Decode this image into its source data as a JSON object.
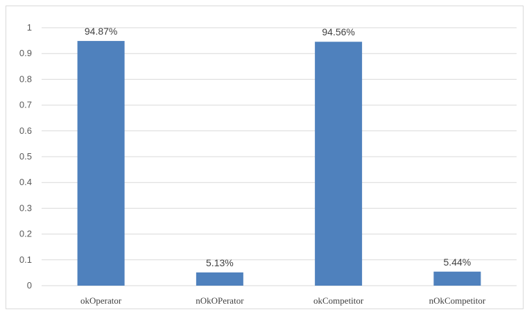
{
  "chart_data": {
    "type": "bar",
    "categories": [
      "okOperator",
      "nOkOPerator",
      "okCompetitor",
      "nOkCompetitor"
    ],
    "values": [
      0.9487,
      0.0513,
      0.9456,
      0.0544
    ],
    "data_labels": [
      "94.87%",
      "5.13%",
      "94.56%",
      "5.44%"
    ],
    "yticks": [
      "0",
      "0.1",
      "0.2",
      "0.3",
      "0.4",
      "0.5",
      "0.6",
      "0.7",
      "0.8",
      "0.9",
      "1"
    ],
    "ylim": [
      0,
      1
    ],
    "grid": true,
    "legend": "none",
    "bar_color": "#4f81bd",
    "grid_color": "#d9d9d9"
  }
}
